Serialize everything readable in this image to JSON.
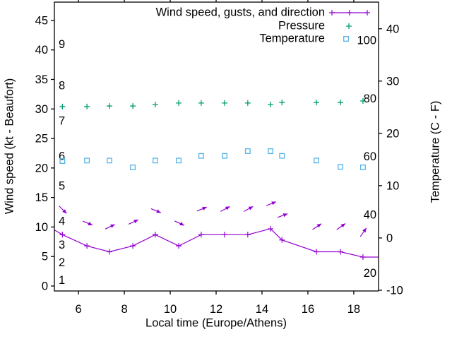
{
  "colors": {
    "wind": "#9400d3",
    "pressure": "#009e73",
    "temperature": "#56b4e9",
    "axis": "#000000",
    "background": "#ffffff"
  },
  "chart_data": {
    "type": "line",
    "title": "",
    "xlabel": "Local time (Europe/Athens)",
    "ylabel_left": "Wind speed (kt - Beaufort)",
    "ylabel_right": "Temperature (C - F)",
    "grid": false,
    "legend_position": "top-right-inside",
    "xlim": [
      4.95,
      19.08
    ],
    "x_ticks": [
      6,
      8,
      10,
      12,
      14,
      16,
      18
    ],
    "left_axis": {
      "unit": "kt",
      "ticks": [
        0,
        5,
        10,
        15,
        20,
        25,
        30,
        35,
        40,
        45
      ],
      "lim": [
        -0.84,
        48.1
      ]
    },
    "right_axis": {
      "unit": "C",
      "ticks": [
        -10,
        0,
        10,
        20,
        30,
        40
      ],
      "lim": [
        -10.14,
        45.1
      ]
    },
    "beaufort_labels": [
      {
        "label": "1",
        "kt": 1
      },
      {
        "label": "2",
        "kt": 4
      },
      {
        "label": "3",
        "kt": 7
      },
      {
        "label": "4",
        "kt": 11
      },
      {
        "label": "5",
        "kt": 17
      },
      {
        "label": "6",
        "kt": 22
      },
      {
        "label": "7",
        "kt": 28
      },
      {
        "label": "8",
        "kt": 34
      },
      {
        "label": "9",
        "kt": 41
      }
    ],
    "fahrenheit_labels": [
      {
        "label": "100",
        "f": 100
      },
      {
        "label": "80",
        "f": 80
      },
      {
        "label": "60",
        "f": 60
      },
      {
        "label": "40",
        "f": 40
      },
      {
        "label": "20",
        "f": 20
      }
    ],
    "legend": [
      {
        "label": "Wind speed, gusts, and direction",
        "series": "wind",
        "sample": "line-plus"
      },
      {
        "label": "Pressure",
        "series": "pressure",
        "sample": "plus"
      },
      {
        "label": "Temperature",
        "series": "temperature",
        "sample": "square"
      }
    ],
    "x": [
      5.3,
      6.37,
      7.35,
      8.37,
      9.35,
      10.37,
      11.35,
      12.37,
      13.38,
      14.37,
      14.87,
      16.37,
      17.42,
      18.4
    ],
    "series": {
      "wind_speed_kt": [
        8.7,
        6.8,
        5.8,
        6.8,
        8.7,
        6.8,
        8.7,
        8.7,
        8.7,
        9.7,
        7.8,
        5.8,
        5.8,
        4.9
      ],
      "wind_gust_kt": [
        13.0,
        10.7,
        10.0,
        10.8,
        12.8,
        10.7,
        13.0,
        13.0,
        13.0,
        13.9,
        11.9,
        10.0,
        10.0,
        9.0
      ],
      "wind_dir_angle_deg": [
        -45,
        -23,
        25,
        25,
        -22,
        -25,
        22,
        28,
        28,
        22,
        20,
        33,
        35,
        55
      ],
      "pressure_pos_on_left_axis_kt": [
        30.4,
        30.4,
        30.5,
        30.5,
        30.75,
        31.0,
        31.0,
        31.0,
        31.0,
        30.75,
        31.1,
        31.1,
        31.1,
        31.35
      ],
      "temperature_c": [
        14.7,
        14.8,
        14.8,
        13.5,
        14.8,
        14.8,
        15.7,
        15.7,
        16.6,
        16.6,
        15.7,
        14.8,
        13.6,
        13.5
      ]
    },
    "wind_line_edges": {
      "left": {
        "x": 4.95,
        "kt": 9.5
      },
      "right": {
        "x": 19.08,
        "kt": 4.9
      }
    }
  }
}
